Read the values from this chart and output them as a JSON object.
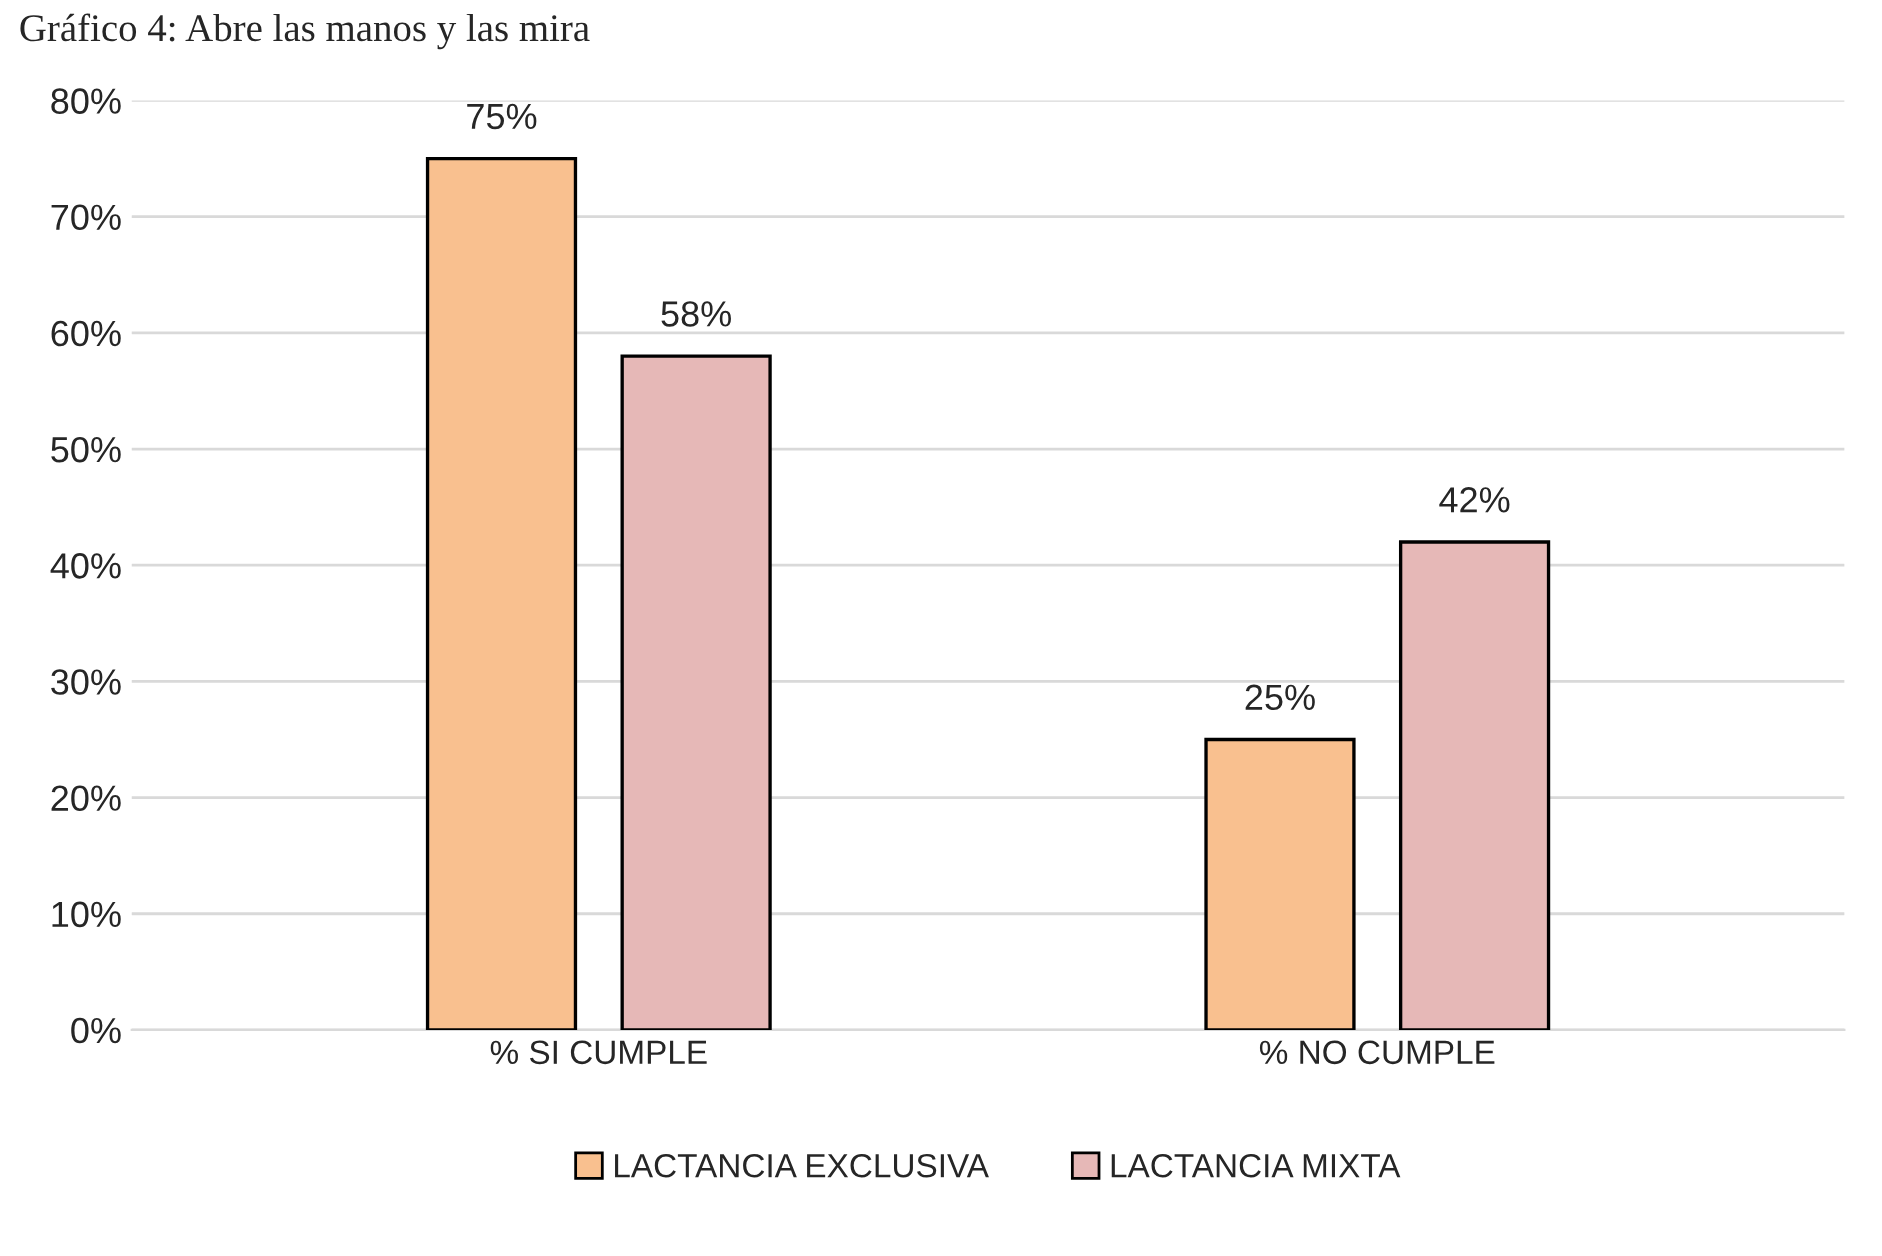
{
  "chart_data": {
    "type": "bar",
    "title": "Gráfico 4: Abre las manos y las mira",
    "categories": [
      "% SI CUMPLE",
      "% NO CUMPLE"
    ],
    "series": [
      {
        "name": "LACTANCIA EXCLUSIVA",
        "color": "#f9c08f",
        "values": [
          75,
          25
        ],
        "value_labels": [
          "75%",
          "25%"
        ]
      },
      {
        "name": "LACTANCIA MIXTA",
        "color": "#e6b8b7",
        "values": [
          58,
          42
        ],
        "value_labels": [
          "58%",
          "42%"
        ]
      }
    ],
    "ylim": [
      0,
      80
    ],
    "yticks": [
      {
        "value": 0,
        "label": "0%"
      },
      {
        "value": 10,
        "label": "10%"
      },
      {
        "value": 20,
        "label": "20%"
      },
      {
        "value": 30,
        "label": "30%"
      },
      {
        "value": 40,
        "label": "40%"
      },
      {
        "value": 50,
        "label": "50%"
      },
      {
        "value": 60,
        "label": "60%"
      },
      {
        "value": 70,
        "label": "70%"
      },
      {
        "value": 80,
        "label": "80%"
      }
    ],
    "grid": "y",
    "legend": "bottom"
  }
}
